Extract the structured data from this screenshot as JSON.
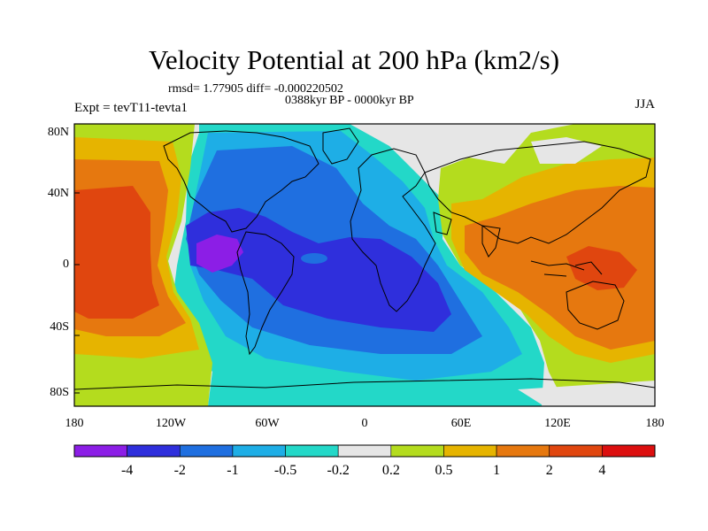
{
  "title": "Velocity Potential at 200 hPa (km2/s)",
  "stats_line": "rmsd= 1.77905 diff= -0.000220502",
  "period_line": "0388kyr BP - 0000kyr BP",
  "experiment": "Expt = tevT11-tevta1",
  "season": "JJA",
  "lat_ticks": [
    "80N",
    "40N",
    "0",
    "40S",
    "80S"
  ],
  "lon_ticks": [
    "180",
    "120W",
    "60W",
    "0",
    "60E",
    "120E",
    "180"
  ],
  "colorbar": {
    "labels": [
      "-4",
      "-2",
      "-1",
      "-0.5",
      "-0.2",
      "0.2",
      "0.5",
      "1",
      "2",
      "4"
    ],
    "colors": [
      "#8c1ee6",
      "#2f2fdc",
      "#1f6fe0",
      "#1eaee6",
      "#23d8c8",
      "#e6e6e6",
      "#b4dc1e",
      "#e6b400",
      "#e6780f",
      "#e0460f",
      "#dc0f0f"
    ]
  },
  "field_colors": {
    "land_outline": "#000000",
    "neutral": "#e6e6e6",
    "lt_-4": "#8c1ee6",
    "-4_-2": "#2f2fdc",
    "-2_-1": "#1f6fe0",
    "-1_-0.5": "#1eaee6",
    "-0.5_-0.2": "#23d8c8",
    "0.2_0.5": "#b4dc1e",
    "0.5_1": "#e6b400",
    "1_2": "#e6780f",
    "2_4": "#e0460f"
  }
}
